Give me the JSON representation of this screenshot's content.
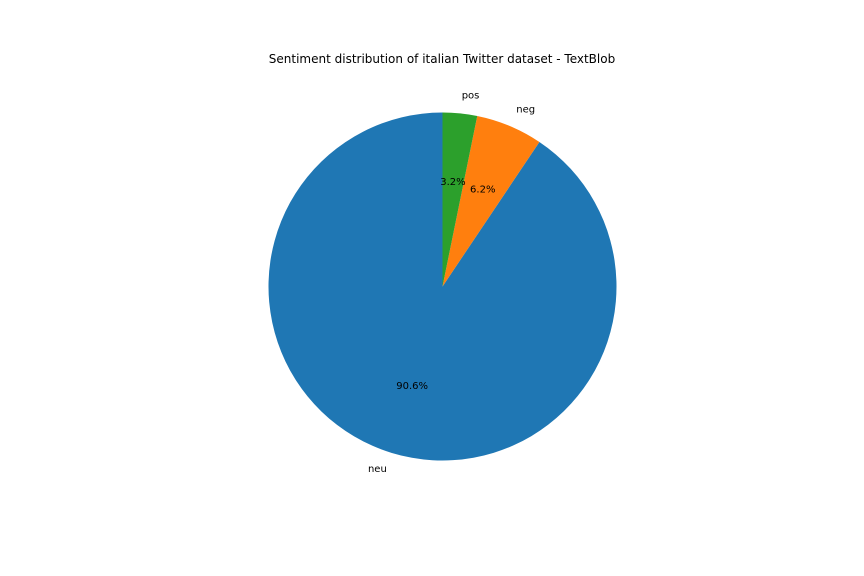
{
  "chart_data": {
    "type": "pie",
    "title": "Sentiment distribution of italian Twitter dataset - TextBlob",
    "slices": [
      {
        "label": "neu",
        "value": 90.6,
        "pct_label": "90.6%",
        "color": "#1f77b4"
      },
      {
        "label": "neg",
        "value": 6.2,
        "pct_label": "6.2%",
        "color": "#ff7f0e"
      },
      {
        "label": "pos",
        "value": 3.2,
        "pct_label": "3.2%",
        "color": "#2ca02c"
      }
    ],
    "start_angle": 90,
    "direction": "counterclockwise",
    "legend": "none"
  }
}
